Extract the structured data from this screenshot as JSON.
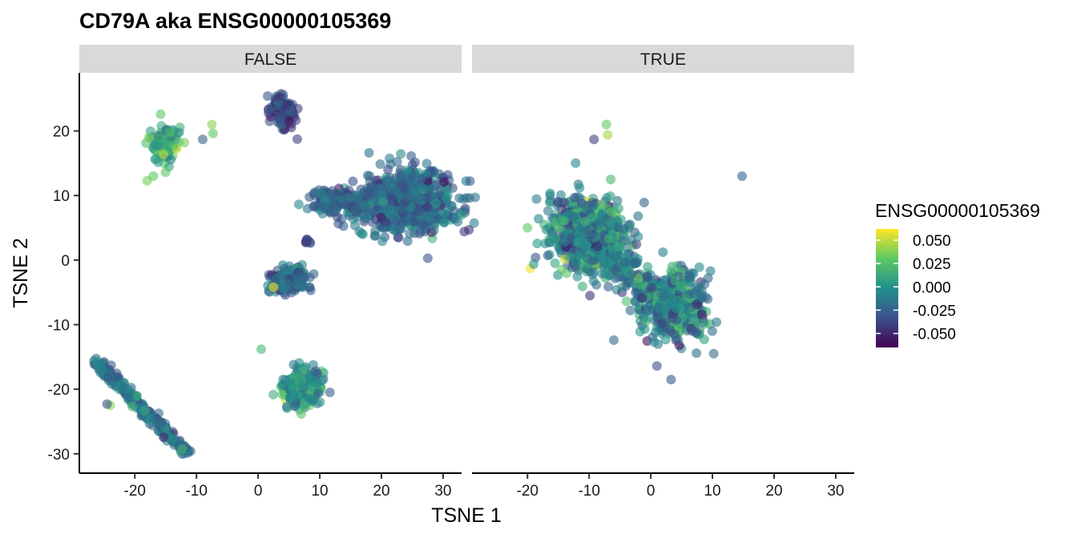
{
  "chart_data": {
    "type": "scatter",
    "title": "CD79A  aka ENSG00000105369",
    "xlabel": "TSNE 1",
    "ylabel": "TSNE 2",
    "xlim": [
      -29,
      33
    ],
    "ylim": [
      -33,
      29
    ],
    "x_ticks": [
      -20,
      -10,
      0,
      10,
      20,
      30
    ],
    "y_ticks": [
      -30,
      -20,
      -10,
      0,
      10,
      20
    ],
    "x_tick_labels": [
      "-20",
      "-10",
      "0",
      "10",
      "20",
      "30"
    ],
    "y_tick_labels": [
      "-30",
      "-20",
      "-10",
      "0",
      "10",
      "20"
    ],
    "grid": false,
    "legend_position": "right",
    "color_scale": {
      "title": "ENSG00000105369",
      "palette": "viridis",
      "colors": [
        "#440154",
        "#3b528b",
        "#21908c",
        "#5dc963",
        "#fde725"
      ],
      "limits": [
        -0.065,
        0.062
      ],
      "breaks": [
        0.05,
        0.025,
        0.0,
        -0.025,
        -0.05
      ],
      "labels": [
        "0.050",
        "0.025",
        "0.000",
        "-0.025",
        "-0.050"
      ]
    },
    "panels": [
      {
        "label": "FALSE",
        "clusters": [
          {
            "cx": 24,
            "cy": 9,
            "sx": 5.0,
            "sy": 3.2,
            "n": 700,
            "mean": -0.022,
            "sd": 0.012
          },
          {
            "cx": 13,
            "cy": 9,
            "sx": 3.2,
            "sy": 1.3,
            "n": 160,
            "mean": -0.022,
            "sd": 0.012
          },
          {
            "cx": 4,
            "cy": 23,
            "sx": 1.6,
            "sy": 1.7,
            "n": 110,
            "mean": -0.035,
            "sd": 0.012
          },
          {
            "cx": -15,
            "cy": 18,
            "sx": 1.6,
            "sy": 1.8,
            "n": 90,
            "mean": 0.015,
            "sd": 0.018
          },
          {
            "cx": 5,
            "cy": -3,
            "sx": 2.2,
            "sy": 1.5,
            "n": 170,
            "mean": -0.02,
            "sd": 0.014
          },
          {
            "cx": 7,
            "cy": -19.5,
            "sx": 2.0,
            "sy": 2.0,
            "n": 230,
            "mean": 0.0,
            "sd": 0.016
          },
          {
            "cx": 8,
            "cy": 3.2,
            "sx": 0.3,
            "sy": 0.8,
            "n": 8,
            "mean": -0.04,
            "sd": 0.008
          }
        ],
        "strands": [
          {
            "x0": -26,
            "y0": -16,
            "x1": -11.5,
            "y1": -30,
            "width": 0.8,
            "n": 260,
            "mean": -0.015,
            "sd": 0.014
          }
        ],
        "points": [
          {
            "x": -7.5,
            "y": 21,
            "value": 0.04
          },
          {
            "x": -7.3,
            "y": 19.6,
            "value": 0.03
          },
          {
            "x": -9,
            "y": 18.7,
            "value": -0.025
          },
          {
            "x": -18,
            "y": 12.3,
            "value": 0.035
          },
          {
            "x": -17,
            "y": 13,
            "value": 0.03
          },
          {
            "x": -15,
            "y": 13.6,
            "value": 0.03
          },
          {
            "x": 0.5,
            "y": -13.8,
            "value": 0.02
          },
          {
            "x": 2.5,
            "y": -4.2,
            "value": 0.06
          },
          {
            "x": -24,
            "y": -22.5,
            "value": 0.04
          },
          {
            "x": -24.5,
            "y": -22.3,
            "value": -0.03
          },
          {
            "x": 19,
            "y": 3.8,
            "value": -0.01
          },
          {
            "x": 17,
            "y": 4,
            "value": 0.0
          }
        ]
      },
      {
        "label": "TRUE",
        "clusters": [
          {
            "cx": -10,
            "cy": 4,
            "sx": 4.5,
            "sy": 4.0,
            "n": 520,
            "mean": -0.008,
            "sd": 0.02
          },
          {
            "cx": 4,
            "cy": -7,
            "sx": 3.2,
            "sy": 3.4,
            "n": 320,
            "mean": -0.008,
            "sd": 0.02
          }
        ],
        "strands": [
          {
            "x0": -14,
            "y0": 7,
            "x1": 4,
            "y1": -9,
            "width": 3.2,
            "n": 380,
            "mean": -0.01,
            "sd": 0.02
          }
        ],
        "points": [
          {
            "x": -7.2,
            "y": 21,
            "value": 0.03
          },
          {
            "x": -7,
            "y": 19.4,
            "value": 0.045
          },
          {
            "x": -9.2,
            "y": 18.7,
            "value": -0.04
          },
          {
            "x": 14.8,
            "y": 13,
            "value": -0.025
          },
          {
            "x": -6,
            "y": -12.4,
            "value": -0.02
          },
          {
            "x": 10.2,
            "y": -14.5,
            "value": -0.02
          },
          {
            "x": 3.3,
            "y": -18.5,
            "value": -0.03
          },
          {
            "x": -6.5,
            "y": 12.5,
            "value": 0.02
          },
          {
            "x": -20,
            "y": 5,
            "value": 0.03
          },
          {
            "x": 1,
            "y": -16.4,
            "value": -0.035
          }
        ]
      }
    ]
  }
}
